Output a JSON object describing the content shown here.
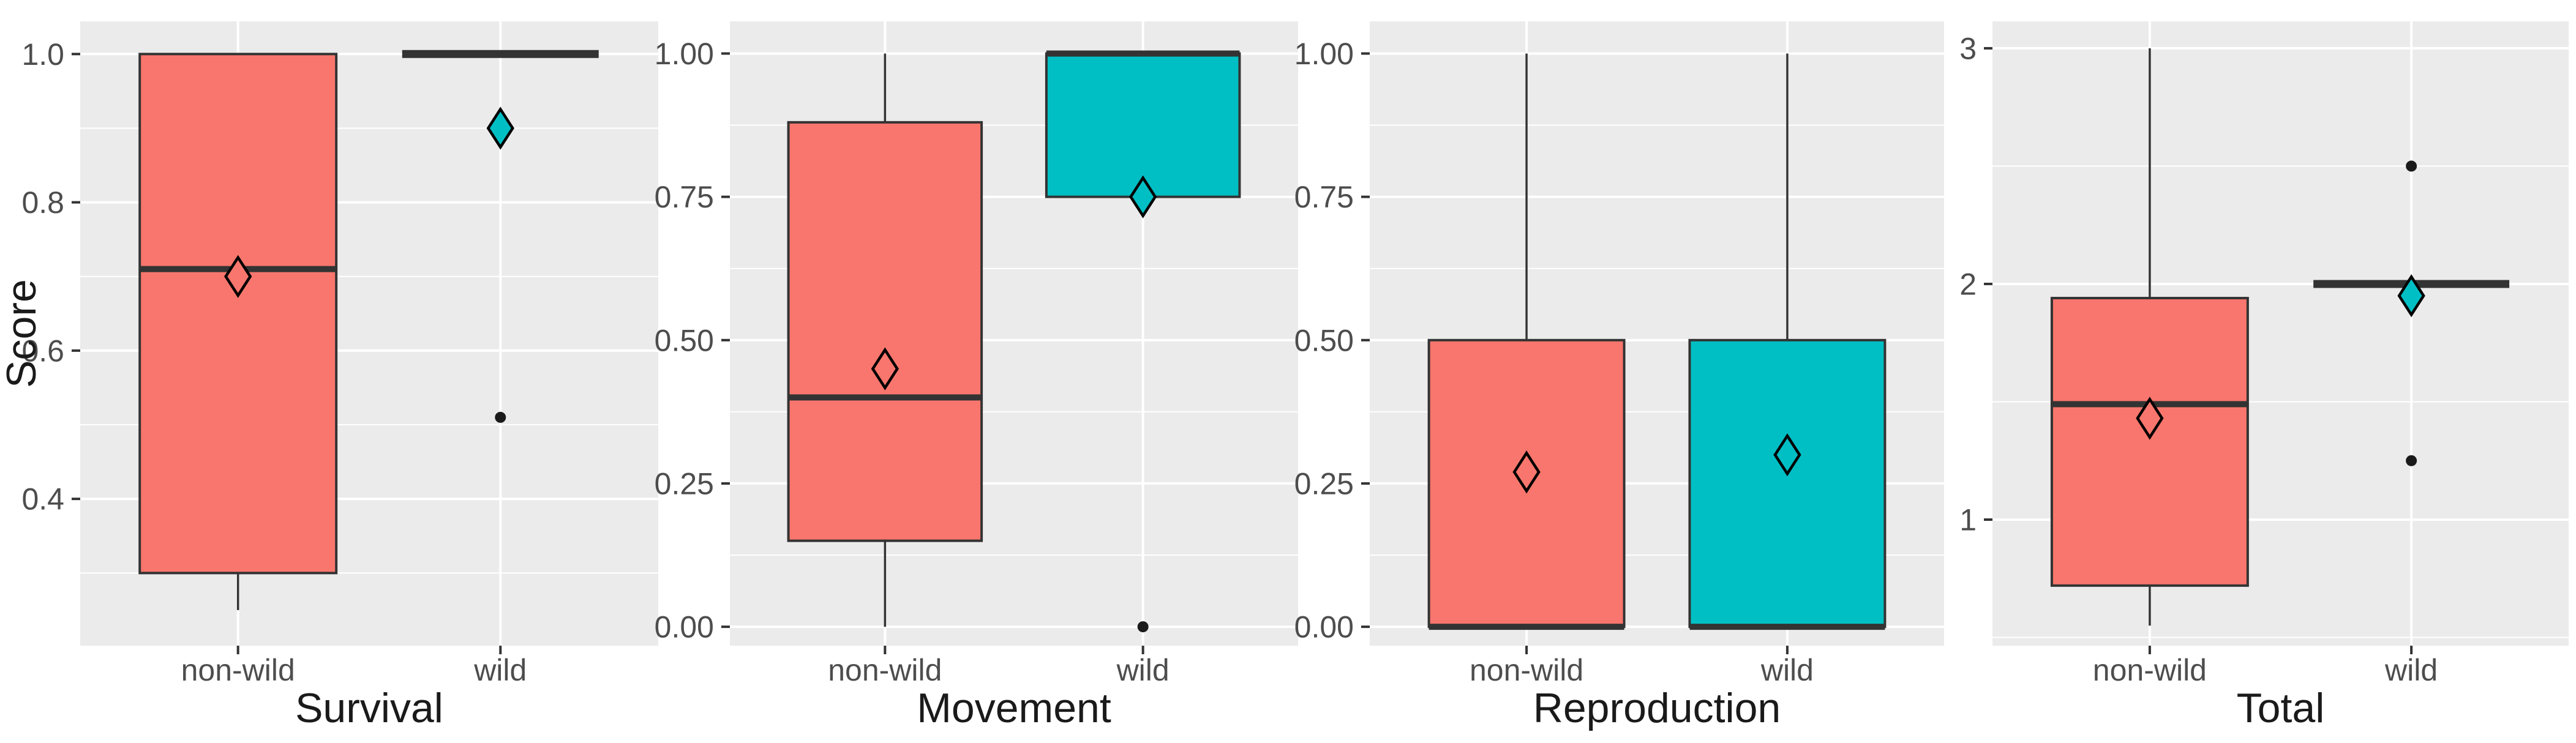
{
  "chart_data": {
    "type": "boxplot",
    "description": "Four side-by-side boxplot panels comparing scores of non-wild vs wild groups",
    "colors": {
      "non_wild": "#F8766D",
      "wild": "#00BFC4",
      "panel_bg": "#EBEBEB",
      "grid": "#FFFFFF",
      "box_border": "#333333",
      "tick_text": "#4D4D4D",
      "title_text": "#1A1A1A",
      "outlier": "#1A1A1A"
    },
    "shared": {
      "categories": [
        "non-wild",
        "wild"
      ],
      "grid": true,
      "legend": false
    },
    "panels": [
      {
        "xlabel": "Survival",
        "ylabel": "Score",
        "ylim": [
          0.202,
          1.044
        ],
        "yticks": [
          {
            "v": 1.0,
            "label": "1.0"
          },
          {
            "v": 0.8,
            "label": "0.8"
          },
          {
            "v": 0.6,
            "label": "0.6"
          },
          {
            "v": 0.4,
            "label": "0.4"
          }
        ],
        "minor_ticks": [
          0.9,
          0.7,
          0.5,
          0.3
        ],
        "groups": [
          {
            "category": "non-wild",
            "color_key": "non_wild",
            "whisker_low": 0.25,
            "q1": 0.3,
            "median": 0.71,
            "q3": 1.0,
            "whisker_high": 1.0,
            "mean": 0.7,
            "outliers": []
          },
          {
            "category": "wild",
            "color_key": "wild",
            "whisker_low": 1.0,
            "q1": 1.0,
            "median": 1.0,
            "q3": 1.0,
            "whisker_high": 1.0,
            "mean": 0.9,
            "outliers": [
              0.51
            ]
          }
        ]
      },
      {
        "xlabel": "Movement",
        "ylabel": "",
        "ylim": [
          -0.033,
          1.056
        ],
        "yticks": [
          {
            "v": 1.0,
            "label": "1.00"
          },
          {
            "v": 0.75,
            "label": "0.75"
          },
          {
            "v": 0.5,
            "label": "0.50"
          },
          {
            "v": 0.25,
            "label": "0.25"
          },
          {
            "v": 0.0,
            "label": "0.00"
          }
        ],
        "minor_ticks": [
          0.875,
          0.625,
          0.375,
          0.125
        ],
        "groups": [
          {
            "category": "non-wild",
            "color_key": "non_wild",
            "whisker_low": 0.0,
            "q1": 0.15,
            "median": 0.4,
            "q3": 0.88,
            "whisker_high": 1.0,
            "mean": 0.45,
            "outliers": []
          },
          {
            "category": "wild",
            "color_key": "wild",
            "whisker_low": 0.75,
            "q1": 0.75,
            "median": 1.0,
            "q3": 1.0,
            "whisker_high": 1.0,
            "mean": 0.75,
            "outliers": [
              0.0
            ]
          }
        ]
      },
      {
        "xlabel": "Reproduction",
        "ylabel": "",
        "ylim": [
          -0.033,
          1.056
        ],
        "yticks": [
          {
            "v": 1.0,
            "label": "1.00"
          },
          {
            "v": 0.75,
            "label": "0.75"
          },
          {
            "v": 0.5,
            "label": "0.50"
          },
          {
            "v": 0.25,
            "label": "0.25"
          },
          {
            "v": 0.0,
            "label": "0.00"
          }
        ],
        "minor_ticks": [
          0.875,
          0.625,
          0.375,
          0.125
        ],
        "groups": [
          {
            "category": "non-wild",
            "color_key": "non_wild",
            "whisker_low": 0.0,
            "q1": 0.0,
            "median": 0.0,
            "q3": 0.5,
            "whisker_high": 1.0,
            "mean": 0.27,
            "outliers": []
          },
          {
            "category": "wild",
            "color_key": "wild",
            "whisker_low": 0.0,
            "q1": 0.0,
            "median": 0.0,
            "q3": 0.5,
            "whisker_high": 1.0,
            "mean": 0.3,
            "outliers": []
          }
        ]
      },
      {
        "xlabel": "Total",
        "ylabel": "",
        "ylim": [
          0.465,
          3.114
        ],
        "yticks": [
          {
            "v": 3,
            "label": "3"
          },
          {
            "v": 2,
            "label": "2"
          },
          {
            "v": 1,
            "label": "1"
          }
        ],
        "minor_ticks": [
          2.5,
          1.5,
          0.5
        ],
        "groups": [
          {
            "category": "non-wild",
            "color_key": "non_wild",
            "whisker_low": 0.55,
            "q1": 0.72,
            "median": 1.49,
            "q3": 1.94,
            "whisker_high": 3.0,
            "mean": 1.43,
            "outliers": []
          },
          {
            "category": "wild",
            "color_key": "wild",
            "whisker_low": 2.0,
            "q1": 2.0,
            "median": 2.0,
            "q3": 2.0,
            "whisker_high": 2.0,
            "mean": 1.95,
            "outliers": [
              2.5,
              1.25
            ]
          }
        ]
      }
    ]
  }
}
